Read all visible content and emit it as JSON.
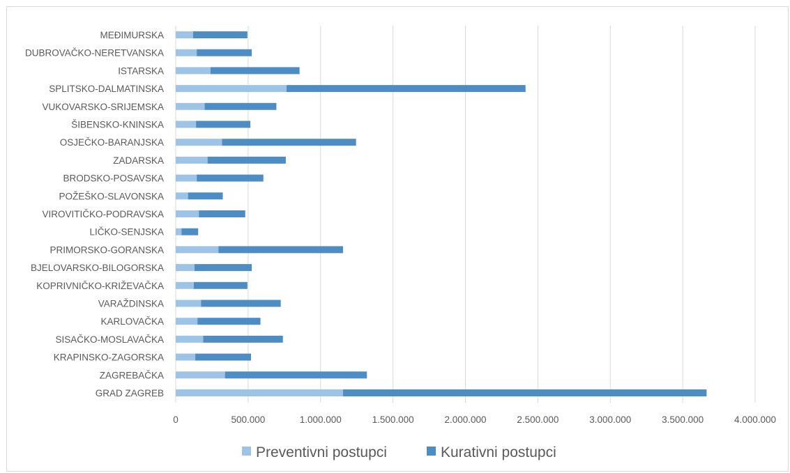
{
  "chart_data": {
    "type": "bar",
    "orientation": "horizontal",
    "stacked": true,
    "categories": [
      "MEĐIMURSKA",
      "DUBROVAČKO-NERETVANSKA",
      "ISTARSKA",
      "SPLITSKO-DALMATINSKA",
      "VUKOVARSKO-SRIJEMSKA",
      "ŠIBENSKO-KNINSKA",
      "OSJEČKO-BARANJSKA",
      "ZADARSKA",
      "BRODSKO-POSAVSKA",
      "POŽEŠKO-SLAVONSKA",
      "VIROVITIČKO-PODRAVSKA",
      "LIČKO-SENJSKA",
      "PRIMORSKO-GORANSKA",
      "BJELOVARSKO-BILOGORSKA",
      "KOPRIVNIČKO-KRIŽEVAČKA",
      "VARAŽDINSKA",
      "KARLOVAČKA",
      "SISAČKO-MOSLAVAČKA",
      "KRAPINSKO-ZAGORSKA",
      "ZAGREBAČKA",
      "GRAD ZAGREB"
    ],
    "series": [
      {
        "name": "Preventivni postupci",
        "color": "#9dc3e6",
        "values": [
          120000,
          145000,
          240000,
          765000,
          200000,
          140000,
          320000,
          220000,
          145000,
          85000,
          160000,
          40000,
          295000,
          130000,
          125000,
          175000,
          150000,
          190000,
          135000,
          340000,
          1155000
        ]
      },
      {
        "name": "Kurativni postupci",
        "color": "#4e8dc3",
        "values": [
          375000,
          380000,
          615000,
          1650000,
          495000,
          375000,
          925000,
          540000,
          460000,
          240000,
          320000,
          115000,
          860000,
          395000,
          370000,
          550000,
          435000,
          550000,
          385000,
          980000,
          2510000
        ]
      }
    ],
    "x_ticks": [
      "0",
      "500.000",
      "1.000.000",
      "1.500.000",
      "2.000.000",
      "2.500.000",
      "3.000.000",
      "3.500.000",
      "4.000.000"
    ],
    "xlim": [
      0,
      4000000
    ],
    "x_tick_step": 500000,
    "title": "",
    "xlabel": "",
    "ylabel": "",
    "grid": "vertical",
    "legend_position": "bottom"
  }
}
